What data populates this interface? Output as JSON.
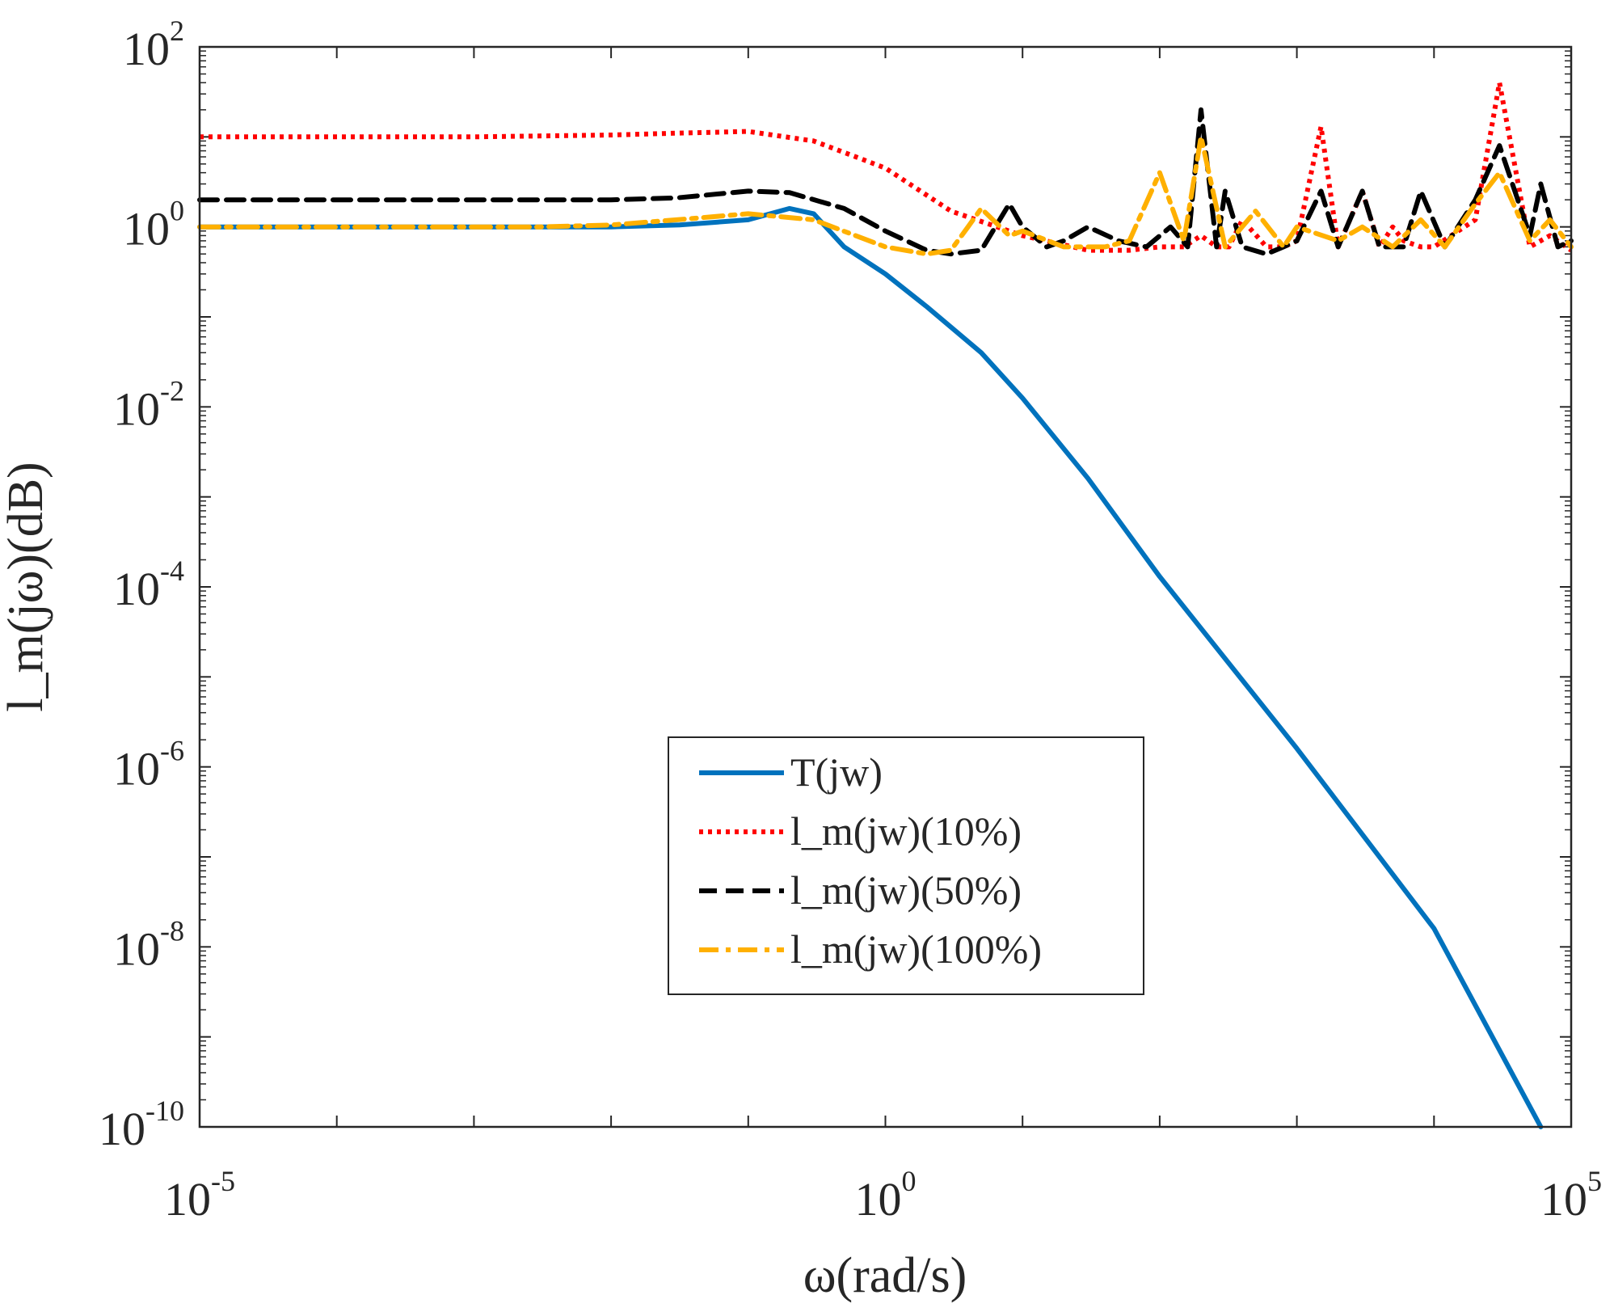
{
  "chart_data": {
    "type": "line",
    "title": "",
    "xlabel": "ω(rad/s)",
    "ylabel": "l_m(jω)(dB)",
    "xscale": "log",
    "yscale": "log",
    "xlim": [
      1e-05,
      100000.0
    ],
    "ylim": [
      1e-10,
      100.0
    ],
    "x_ticks": [
      {
        "base": "10",
        "exp": "-5",
        "value": 1e-05
      },
      {
        "base": "10",
        "exp": "0",
        "value": 1
      },
      {
        "base": "10",
        "exp": "5",
        "value": 100000.0
      }
    ],
    "y_ticks": [
      {
        "base": "10",
        "exp": "2",
        "value": 100.0
      },
      {
        "base": "10",
        "exp": "0",
        "value": 1
      },
      {
        "base": "10",
        "exp": "-2",
        "value": 0.01
      },
      {
        "base": "10",
        "exp": "-4",
        "value": 0.0001
      },
      {
        "base": "10",
        "exp": "-6",
        "value": 1e-06
      },
      {
        "base": "10",
        "exp": "-8",
        "value": 1e-08
      },
      {
        "base": "10",
        "exp": "-10",
        "value": 1e-10
      }
    ],
    "legend_position": "lower-center",
    "series": [
      {
        "name": "T(jw)",
        "color": "#0072BD",
        "style": "solid",
        "x": [
          1e-05,
          0.0001,
          0.001,
          0.01,
          0.0316,
          0.1,
          0.2,
          0.3,
          0.5,
          1,
          2,
          5,
          10,
          30,
          100,
          1000,
          10000,
          60000
        ],
        "y": [
          1,
          1,
          1,
          1,
          1.05,
          1.2,
          1.6,
          1.4,
          0.6,
          0.3,
          0.13,
          0.04,
          0.0125,
          0.0016,
          0.00013,
          1.6e-06,
          1.6e-08,
          1e-10
        ]
      },
      {
        "name": "l_m(jw)(10%)",
        "color": "#FF0000",
        "style": "dotted",
        "x": [
          1e-05,
          0.001,
          0.01,
          0.03,
          0.1,
          0.3,
          1,
          3,
          10,
          30,
          60,
          100,
          150,
          200,
          260,
          320,
          400,
          600,
          800,
          1000,
          1500,
          2000,
          3000,
          4000,
          5000,
          6000,
          8000,
          10000,
          20000,
          30000,
          50000,
          70000,
          100000
        ],
        "y": [
          10,
          10,
          10.5,
          11,
          11.5,
          9,
          4.5,
          1.5,
          0.8,
          0.55,
          0.55,
          0.6,
          0.6,
          0.8,
          0.6,
          0.6,
          1.2,
          0.6,
          0.6,
          0.7,
          13,
          0.6,
          2.5,
          0.6,
          1.0,
          0.7,
          0.6,
          0.6,
          1.2,
          40,
          0.6,
          0.8,
          0.55
        ]
      },
      {
        "name": "l_m(jw)(50%)",
        "color": "#000000",
        "style": "dashed",
        "x": [
          1e-05,
          0.001,
          0.01,
          0.03,
          0.1,
          0.2,
          0.5,
          1,
          2,
          3,
          5,
          8,
          10,
          15,
          20,
          30,
          50,
          80,
          120,
          160,
          200,
          260,
          300,
          400,
          600,
          800,
          1000,
          1500,
          2000,
          3000,
          4000,
          6000,
          8000,
          12000,
          20000,
          30000,
          50000,
          60000,
          80000,
          100000
        ],
        "y": [
          2,
          2,
          2,
          2.1,
          2.5,
          2.4,
          1.6,
          0.9,
          0.55,
          0.5,
          0.55,
          1.8,
          1.0,
          0.6,
          0.7,
          1.0,
          0.7,
          0.6,
          1.0,
          0.6,
          20,
          0.6,
          2.5,
          0.6,
          0.5,
          0.6,
          0.7,
          2.5,
          0.6,
          2.5,
          0.6,
          0.6,
          2.5,
          0.6,
          2.0,
          8,
          0.8,
          3.0,
          0.6,
          0.7
        ]
      },
      {
        "name": "l_m(jw)(100%)",
        "color": "#FFB000",
        "style": "dashdot",
        "x": [
          1e-05,
          0.001,
          0.003,
          0.01,
          0.03,
          0.1,
          0.3,
          1,
          2,
          3,
          4,
          5,
          8,
          10,
          20,
          40,
          60,
          100,
          150,
          200,
          300,
          500,
          800,
          1000,
          2000,
          3000,
          5000,
          8000,
          12000,
          20000,
          30000,
          50000,
          70000,
          100000
        ],
        "y": [
          1,
          1,
          1,
          1.05,
          1.2,
          1.4,
          1.2,
          0.6,
          0.5,
          0.55,
          1.0,
          1.6,
          0.8,
          0.9,
          0.6,
          0.6,
          0.7,
          4,
          0.7,
          10,
          0.6,
          1.5,
          0.6,
          1.0,
          0.7,
          1.0,
          0.6,
          1.2,
          0.6,
          1.8,
          4.0,
          0.7,
          1.2,
          0.6
        ]
      }
    ]
  }
}
